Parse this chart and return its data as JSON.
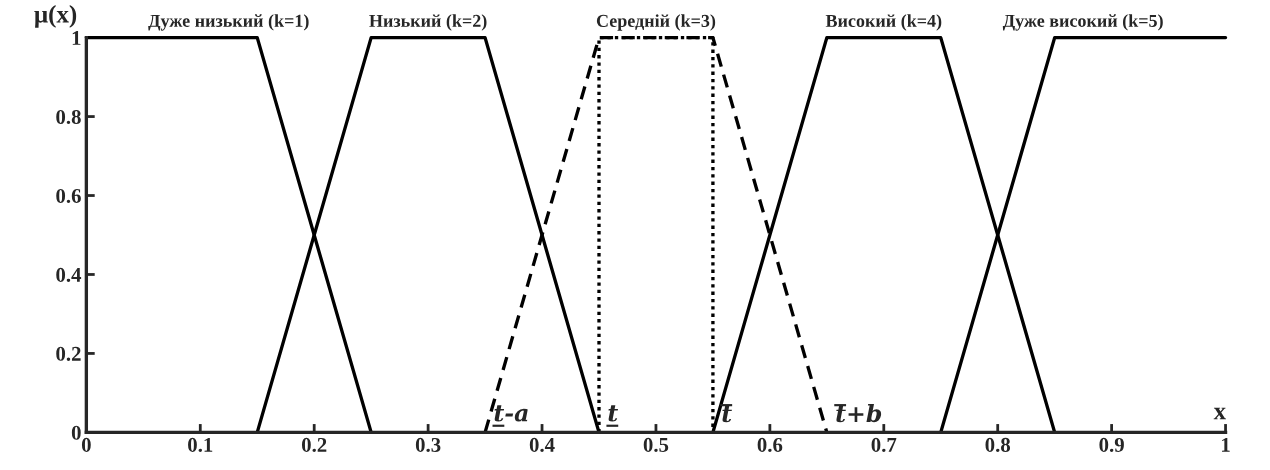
{
  "chart_data": {
    "type": "line",
    "xlabel": "x",
    "ylabel": "μ(x)",
    "xlim": [
      0,
      1
    ],
    "ylim": [
      0,
      1
    ],
    "xticks": [
      0,
      0.1,
      0.2,
      0.3,
      0.4,
      0.5,
      0.6,
      0.7,
      0.8,
      0.9,
      1
    ],
    "yticks": [
      0,
      0.2,
      0.4,
      0.6,
      0.8,
      1
    ],
    "grid": false,
    "legend": false,
    "series": [
      {
        "name": "Дуже низький (k=1)",
        "color": "#000000",
        "line_style": "solid",
        "x": [
          0,
          0.15,
          0.25
        ],
        "values": [
          1,
          1,
          0
        ]
      },
      {
        "name": "Низький (k=2)",
        "color": "#000000",
        "line_style": "solid",
        "x": [
          0.15,
          0.25,
          0.35,
          0.45
        ],
        "values": [
          0,
          1,
          1,
          0
        ]
      },
      {
        "name": "Середній (k=3)",
        "color": "#000000",
        "line_style": "dashed",
        "x": [
          0.35,
          0.45,
          0.55,
          0.65
        ],
        "values": [
          0,
          1,
          1,
          0
        ]
      },
      {
        "color": "#000000",
        "line_style": "dotted",
        "x": [
          0.45,
          0.45,
          0.55,
          0.55
        ],
        "values": [
          0,
          1,
          1,
          0
        ]
      },
      {
        "name": "Високий (k=4)",
        "color": "#000000",
        "line_style": "solid",
        "x": [
          0.55,
          0.65,
          0.75,
          0.85
        ],
        "values": [
          0,
          1,
          1,
          0
        ]
      },
      {
        "name": "Дуже високий (k=5)",
        "color": "#000000",
        "line_style": "solid",
        "x": [
          0.75,
          0.85,
          1
        ],
        "values": [
          0,
          1,
          1
        ]
      }
    ],
    "annotations": [
      {
        "text": "t̲-a",
        "x": 0.35,
        "y": 0
      },
      {
        "text": "t̲",
        "x": 0.45,
        "y": 0
      },
      {
        "text": "t̅",
        "x": 0.55,
        "y": 0
      },
      {
        "text": "t̅+b",
        "x": 0.65,
        "y": 0
      }
    ]
  }
}
